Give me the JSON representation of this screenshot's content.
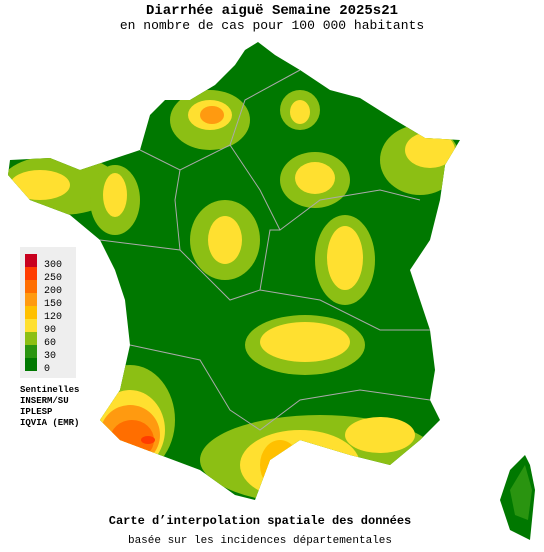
{
  "header": {
    "title": "Diarrhée aiguë Semaine 2025s21",
    "subtitle": "en nombre de cas pour 100 000 habitants"
  },
  "legend": {
    "items": [
      {
        "value": 300,
        "color": "#c8001e"
      },
      {
        "value": 250,
        "color": "#ff3c00"
      },
      {
        "value": 200,
        "color": "#ff6e00"
      },
      {
        "value": 150,
        "color": "#ff9a10"
      },
      {
        "value": 120,
        "color": "#ffc000"
      },
      {
        "value": 90,
        "color": "#ffe030"
      },
      {
        "value": 60,
        "color": "#8cbf14"
      },
      {
        "value": 30,
        "color": "#2a9410"
      },
      {
        "value": 0,
        "color": "#007800"
      }
    ]
  },
  "sources": {
    "title": "Sentinelles",
    "lines": [
      "INSERM/SU",
      "IPLESP",
      "IQVIA (EMR)"
    ]
  },
  "footer": {
    "title": "Carte d’interpolation spatiale des données",
    "subtitle": "basée sur les incidences départementales"
  }
}
